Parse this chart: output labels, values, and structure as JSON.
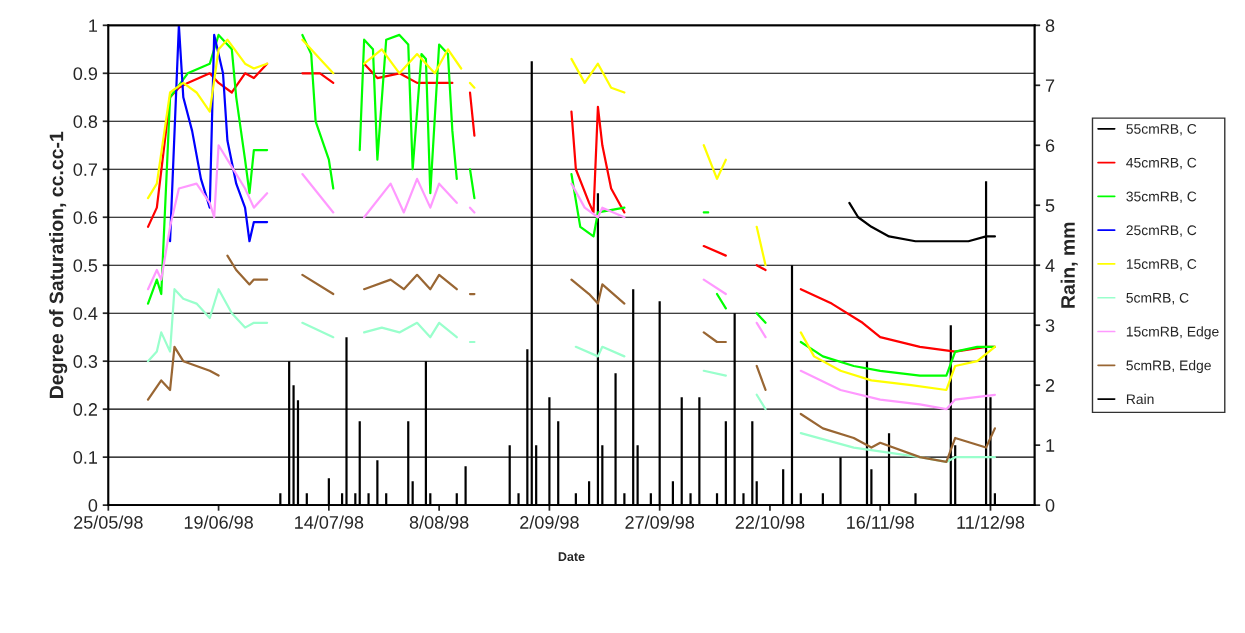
{
  "chart_data": {
    "type": "line",
    "xlabel": "Date",
    "ylabel": "Degree of Saturation, cc.cc-1",
    "y2label": "Rain, mm",
    "xlim": [
      "1998-05-25",
      "1998-12-21"
    ],
    "xticks": [
      {
        "value": "1998-05-25",
        "label": "25/05/98"
      },
      {
        "value": "1998-06-19",
        "label": "19/06/98"
      },
      {
        "value": "1998-07-14",
        "label": "14/07/98"
      },
      {
        "value": "1998-08-08",
        "label": "8/08/98"
      },
      {
        "value": "1998-09-02",
        "label": "2/09/98"
      },
      {
        "value": "1998-09-27",
        "label": "27/09/98"
      },
      {
        "value": "1998-10-22",
        "label": "22/10/98"
      },
      {
        "value": "1998-11-16",
        "label": "16/11/98"
      },
      {
        "value": "1998-12-11",
        "label": "11/12/98"
      }
    ],
    "ylim": [
      0,
      1
    ],
    "yticks": [
      0,
      0.1,
      0.2,
      0.3,
      0.4,
      0.5,
      0.6,
      0.7,
      0.8,
      0.9,
      1
    ],
    "y2lim": [
      0,
      8
    ],
    "y2ticks": [
      0,
      1,
      2,
      3,
      4,
      5,
      6,
      7,
      8
    ],
    "grid": "y",
    "legend": "right",
    "marker": "none",
    "line_style": "solid",
    "series": [
      {
        "name": "55cmRB, C",
        "color": "#000000",
        "x": [
          "1998-11-09",
          "1998-11-11",
          "1998-11-14",
          "1998-11-18",
          "1998-11-24",
          "1998-12-01",
          "1998-12-06",
          "1998-12-10",
          "1998-12-12"
        ],
        "values": [
          0.63,
          0.6,
          0.58,
          0.56,
          0.55,
          0.55,
          0.55,
          0.56,
          0.56
        ]
      },
      {
        "name": "45cmRB, C",
        "color": "#ff0000",
        "x": [
          "1998-06-03",
          "1998-06-05",
          "1998-06-08",
          "1998-06-10",
          "1998-06-12",
          "1998-06-17",
          "1998-06-19",
          "1998-06-22",
          "1998-06-25",
          "1998-06-27",
          "1998-06-30",
          "1998-07-04",
          "1998-07-08",
          "1998-07-12",
          "1998-07-15",
          "1998-07-19",
          "1998-07-22",
          "1998-07-25",
          "1998-07-30",
          "1998-08-03",
          "1998-08-08",
          "1998-08-11",
          "1998-08-13",
          "1998-08-15",
          "1998-08-16",
          "1998-08-30",
          "1998-09-07",
          "1998-09-08",
          "1998-09-11",
          "1998-09-12",
          "1998-09-13",
          "1998-09-14",
          "1998-09-16",
          "1998-09-19",
          "1998-09-30",
          "1998-10-07",
          "1998-10-12",
          "1998-10-14",
          "1998-10-19",
          "1998-10-21",
          "1998-10-24",
          "1998-10-29",
          "1998-11-05",
          "1998-11-12",
          "1998-11-16",
          "1998-11-25",
          "1998-12-03",
          "1998-12-10",
          "1998-12-12"
        ],
        "values": [
          0.58,
          0.62,
          0.85,
          0.87,
          0.88,
          0.9,
          0.88,
          0.86,
          0.9,
          0.89,
          0.92,
          null,
          0.9,
          0.9,
          0.88,
          null,
          0.92,
          0.89,
          0.9,
          0.88,
          0.88,
          0.88,
          null,
          0.86,
          0.77,
          null,
          0.82,
          0.7,
          0.63,
          0.61,
          0.83,
          0.75,
          0.66,
          0.61,
          null,
          0.54,
          0.52,
          null,
          0.5,
          0.49,
          null,
          0.45,
          0.42,
          0.38,
          0.35,
          0.33,
          0.32,
          0.33,
          0.33
        ]
      },
      {
        "name": "35cmRB, C",
        "color": "#00ff00",
        "x": [
          "1998-06-03",
          "1998-06-05",
          "1998-06-06",
          "1998-06-08",
          "1998-06-12",
          "1998-06-17",
          "1998-06-19",
          "1998-06-22",
          "1998-06-23",
          "1998-06-25",
          "1998-06-26",
          "1998-06-27",
          "1998-06-30",
          "1998-07-04",
          "1998-07-08",
          "1998-07-10",
          "1998-07-11",
          "1998-07-14",
          "1998-07-15",
          "1998-07-19",
          "1998-07-21",
          "1998-07-22",
          "1998-07-24",
          "1998-07-25",
          "1998-07-27",
          "1998-07-30",
          "1998-08-01",
          "1998-08-02",
          "1998-08-04",
          "1998-08-05",
          "1998-08-06",
          "1998-08-08",
          "1998-08-10",
          "1998-08-11",
          "1998-08-12",
          "1998-08-13",
          "1998-08-15",
          "1998-08-16",
          "1998-08-30",
          "1998-09-07",
          "1998-09-09",
          "1998-09-12",
          "1998-09-13",
          "1998-09-19",
          "1998-09-30",
          "1998-10-07",
          "1998-10-08",
          "1998-10-09",
          "1998-10-10",
          "1998-10-12",
          "1998-10-14",
          "1998-10-19",
          "1998-10-21",
          "1998-10-24",
          "1998-10-29",
          "1998-11-03",
          "1998-11-10",
          "1998-11-16",
          "1998-11-25",
          "1998-12-01",
          "1998-12-03",
          "1998-12-08",
          "1998-12-12"
        ],
        "values": [
          0.42,
          0.47,
          0.44,
          0.85,
          0.9,
          0.92,
          0.98,
          0.95,
          0.85,
          0.72,
          0.65,
          0.74,
          0.74,
          null,
          0.98,
          0.94,
          0.8,
          0.72,
          0.66,
          null,
          0.74,
          0.97,
          0.95,
          0.72,
          0.97,
          0.98,
          0.96,
          0.7,
          0.94,
          0.93,
          0.65,
          0.96,
          0.94,
          0.78,
          0.68,
          null,
          0.7,
          0.64,
          null,
          0.69,
          0.58,
          0.56,
          0.61,
          0.62,
          null,
          0.61,
          0.61,
          null,
          0.44,
          0.41,
          null,
          0.4,
          0.38,
          null,
          0.34,
          0.31,
          0.29,
          0.28,
          0.27,
          0.27,
          0.32,
          0.33,
          0.33
        ]
      },
      {
        "name": "25cmRB, C",
        "color": "#0000ff",
        "x": [
          "1998-06-08",
          "1998-06-10",
          "1998-06-11",
          "1998-06-13",
          "1998-06-15",
          "1998-06-17",
          "1998-06-18",
          "1998-06-20",
          "1998-06-21",
          "1998-06-23",
          "1998-06-25",
          "1998-06-26",
          "1998-06-27",
          "1998-06-30"
        ],
        "values": [
          0.55,
          1.0,
          0.85,
          0.78,
          0.68,
          0.62,
          0.98,
          0.9,
          0.76,
          0.67,
          0.62,
          0.55,
          0.59,
          0.59
        ]
      },
      {
        "name": "15cmRB, C",
        "color": "#ffff00",
        "x": [
          "1998-06-03",
          "1998-06-05",
          "1998-06-08",
          "1998-06-11",
          "1998-06-14",
          "1998-06-17",
          "1998-06-19",
          "1998-06-21",
          "1998-06-25",
          "1998-06-27",
          "1998-06-30",
          "1998-07-04",
          "1998-07-08",
          "1998-07-12",
          "1998-07-15",
          "1998-07-19",
          "1998-07-22",
          "1998-07-26",
          "1998-07-30",
          "1998-08-03",
          "1998-08-07",
          "1998-08-10",
          "1998-08-13",
          "1998-08-14",
          "1998-08-15",
          "1998-08-16",
          "1998-08-30",
          "1998-09-07",
          "1998-09-10",
          "1998-09-13",
          "1998-09-16",
          "1998-09-19",
          "1998-09-30",
          "1998-10-07",
          "1998-10-10",
          "1998-10-12",
          "1998-10-14",
          "1998-10-19",
          "1998-10-21",
          "1998-10-24",
          "1998-10-29",
          "1998-11-01",
          "1998-11-07",
          "1998-11-14",
          "1998-11-23",
          "1998-12-01",
          "1998-12-03",
          "1998-12-08",
          "1998-12-12"
        ],
        "values": [
          0.64,
          0.67,
          0.86,
          0.88,
          0.86,
          0.82,
          0.95,
          0.97,
          0.92,
          0.91,
          0.92,
          null,
          0.97,
          0.93,
          0.9,
          null,
          0.92,
          0.95,
          0.9,
          0.94,
          0.9,
          0.95,
          0.91,
          null,
          0.88,
          0.87,
          null,
          0.93,
          0.88,
          0.92,
          0.87,
          0.86,
          null,
          0.75,
          0.68,
          0.72,
          null,
          0.58,
          0.5,
          null,
          0.36,
          0.31,
          0.28,
          0.26,
          0.25,
          0.24,
          0.29,
          0.3,
          0.33
        ]
      },
      {
        "name": "5cmRB, C",
        "color": "#99ffcc",
        "x": [
          "1998-06-03",
          "1998-06-05",
          "1998-06-06",
          "1998-06-08",
          "1998-06-09",
          "1998-06-11",
          "1998-06-14",
          "1998-06-17",
          "1998-06-19",
          "1998-06-22",
          "1998-06-25",
          "1998-06-27",
          "1998-06-30",
          "1998-07-04",
          "1998-07-08",
          "1998-07-15",
          "1998-07-19",
          "1998-07-22",
          "1998-07-26",
          "1998-07-30",
          "1998-08-03",
          "1998-08-06",
          "1998-08-08",
          "1998-08-12",
          "1998-08-13",
          "1998-08-15",
          "1998-08-16",
          "1998-08-30",
          "1998-09-08",
          "1998-09-13",
          "1998-09-14",
          "1998-09-19",
          "1998-09-30",
          "1998-10-07",
          "1998-10-12",
          "1998-10-14",
          "1998-10-19",
          "1998-10-21",
          "1998-10-24",
          "1998-10-29",
          "1998-11-10",
          "1998-11-25",
          "1998-12-01",
          "1998-12-03",
          "1998-12-12"
        ],
        "values": [
          0.3,
          0.32,
          0.36,
          0.32,
          0.45,
          0.43,
          0.42,
          0.39,
          0.45,
          0.4,
          0.37,
          0.38,
          0.38,
          null,
          0.38,
          0.35,
          null,
          0.36,
          0.37,
          0.36,
          0.38,
          0.35,
          0.38,
          0.35,
          null,
          0.34,
          0.34,
          null,
          0.33,
          0.31,
          0.33,
          0.31,
          null,
          0.28,
          0.27,
          null,
          0.23,
          0.2,
          null,
          0.15,
          0.12,
          0.1,
          0.09,
          0.1,
          0.1
        ]
      },
      {
        "name": "15cmRB, Edge",
        "color": "#ff99ff",
        "x": [
          "1998-06-03",
          "1998-06-05",
          "1998-06-06",
          "1998-06-08",
          "1998-06-10",
          "1998-06-14",
          "1998-06-17",
          "1998-06-18",
          "1998-06-19",
          "1998-06-21",
          "1998-06-25",
          "1998-06-27",
          "1998-06-30",
          "1998-07-04",
          "1998-07-08",
          "1998-07-15",
          "1998-07-19",
          "1998-07-22",
          "1998-07-28",
          "1998-07-31",
          "1998-08-03",
          "1998-08-06",
          "1998-08-08",
          "1998-08-12",
          "1998-08-13",
          "1998-08-15",
          "1998-08-16",
          "1998-08-30",
          "1998-09-07",
          "1998-09-10",
          "1998-09-13",
          "1998-09-14",
          "1998-09-19",
          "1998-09-30",
          "1998-10-07",
          "1998-10-12",
          "1998-10-14",
          "1998-10-19",
          "1998-10-21",
          "1998-10-24",
          "1998-10-29",
          "1998-11-07",
          "1998-11-16",
          "1998-11-25",
          "1998-12-01",
          "1998-12-03",
          "1998-12-12"
        ],
        "values": [
          0.45,
          0.49,
          0.47,
          0.58,
          0.66,
          0.67,
          0.63,
          0.6,
          0.75,
          0.72,
          0.66,
          0.62,
          0.65,
          null,
          0.69,
          0.61,
          null,
          0.6,
          0.67,
          0.61,
          0.68,
          0.62,
          0.67,
          0.63,
          null,
          0.62,
          0.61,
          null,
          0.67,
          0.62,
          0.6,
          0.62,
          0.6,
          null,
          0.47,
          0.44,
          null,
          0.38,
          0.35,
          null,
          0.28,
          0.24,
          0.22,
          0.21,
          0.2,
          0.22,
          0.23
        ]
      },
      {
        "name": "5cmRB, Edge",
        "color": "#996633",
        "x": [
          "1998-06-03",
          "1998-06-06",
          "1998-06-08",
          "1998-06-09",
          "1998-06-11",
          "1998-06-17",
          "1998-06-19",
          "1998-06-20",
          "1998-06-21",
          "1998-06-23",
          "1998-06-26",
          "1998-06-27",
          "1998-06-30",
          "1998-07-04",
          "1998-07-08",
          "1998-07-15",
          "1998-07-19",
          "1998-07-22",
          "1998-07-28",
          "1998-07-31",
          "1998-08-03",
          "1998-08-06",
          "1998-08-08",
          "1998-08-12",
          "1998-08-13",
          "1998-08-15",
          "1998-08-16",
          "1998-08-30",
          "1998-09-07",
          "1998-09-11",
          "1998-09-13",
          "1998-09-14",
          "1998-09-19",
          "1998-09-30",
          "1998-10-07",
          "1998-10-10",
          "1998-10-12",
          "1998-10-14",
          "1998-10-19",
          "1998-10-21",
          "1998-10-24",
          "1998-10-29",
          "1998-11-03",
          "1998-11-10",
          "1998-11-14",
          "1998-11-16",
          "1998-11-25",
          "1998-12-01",
          "1998-12-03",
          "1998-12-10",
          "1998-12-12"
        ],
        "values": [
          0.22,
          0.26,
          0.24,
          0.33,
          0.3,
          0.28,
          0.27,
          null,
          0.52,
          0.49,
          0.46,
          0.47,
          0.47,
          null,
          0.48,
          0.44,
          null,
          0.45,
          0.47,
          0.45,
          0.48,
          0.45,
          0.48,
          0.45,
          null,
          0.44,
          0.44,
          null,
          0.47,
          0.44,
          0.42,
          0.46,
          0.42,
          null,
          0.36,
          0.34,
          0.34,
          null,
          0.29,
          0.24,
          null,
          0.19,
          0.16,
          0.14,
          0.12,
          0.13,
          0.1,
          0.09,
          0.14,
          0.12,
          0.16
        ]
      },
      {
        "name": "Rain",
        "type": "bar",
        "axis": "y2",
        "color": "#000000",
        "x": [
          "1998-07-03",
          "1998-07-05",
          "1998-07-06",
          "1998-07-07",
          "1998-07-09",
          "1998-07-14",
          "1998-07-17",
          "1998-07-18",
          "1998-07-20",
          "1998-07-21",
          "1998-07-23",
          "1998-07-25",
          "1998-07-27",
          "1998-08-01",
          "1998-08-02",
          "1998-08-05",
          "1998-08-06",
          "1998-08-12",
          "1998-08-14",
          "1998-08-24",
          "1998-08-26",
          "1998-08-28",
          "1998-08-29",
          "1998-08-30",
          "1998-09-02",
          "1998-09-04",
          "1998-09-08",
          "1998-09-11",
          "1998-09-13",
          "1998-09-14",
          "1998-09-17",
          "1998-09-19",
          "1998-09-21",
          "1998-09-22",
          "1998-09-25",
          "1998-09-27",
          "1998-09-30",
          "1998-10-02",
          "1998-10-04",
          "1998-10-06",
          "1998-10-10",
          "1998-10-12",
          "1998-10-14",
          "1998-10-16",
          "1998-10-18",
          "1998-10-19",
          "1998-10-25",
          "1998-10-27",
          "1998-10-29",
          "1998-11-03",
          "1998-11-07",
          "1998-11-13",
          "1998-11-14",
          "1998-11-18",
          "1998-11-24",
          "1998-12-02",
          "1998-12-03",
          "1998-12-10",
          "1998-12-11",
          "1998-12-12"
        ],
        "values": [
          0.2,
          2.4,
          2.0,
          1.75,
          0.2,
          0.45,
          0.2,
          2.8,
          0.2,
          1.4,
          0.2,
          0.75,
          0.2,
          1.4,
          0.4,
          2.4,
          0.2,
          0.2,
          0.65,
          1.0,
          0.2,
          2.6,
          7.4,
          1.0,
          1.8,
          1.4,
          0.2,
          0.4,
          5.2,
          1.0,
          2.2,
          0.2,
          3.6,
          1.0,
          0.2,
          3.4,
          0.4,
          1.8,
          0.2,
          1.8,
          0.2,
          1.4,
          3.2,
          0.2,
          1.4,
          0.4,
          0.6,
          4.0,
          0.2,
          0.2,
          0.8,
          2.4,
          0.6,
          1.2,
          0.2,
          3.0,
          1.0,
          5.4,
          1.8,
          0.2
        ]
      }
    ]
  }
}
